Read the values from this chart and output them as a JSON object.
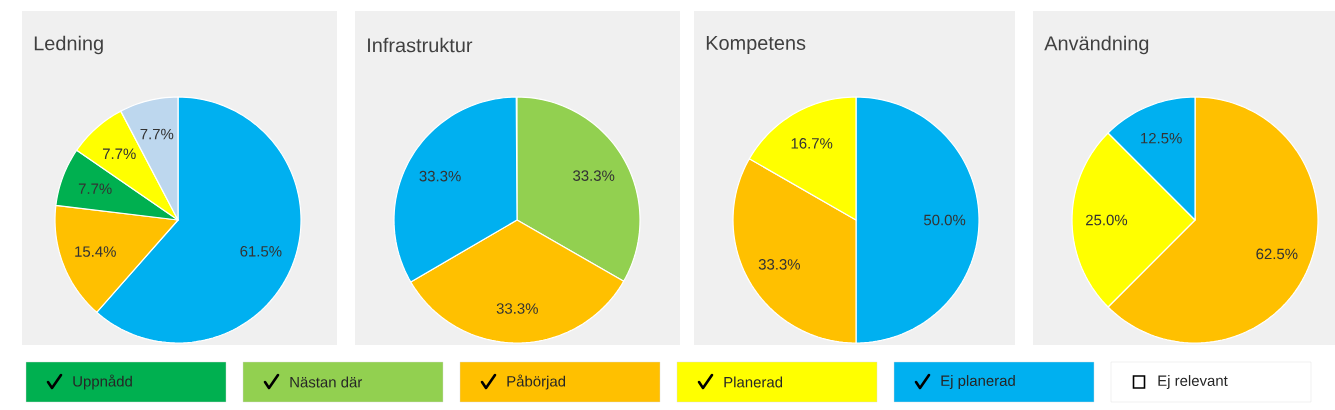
{
  "chart_data": [
    {
      "type": "pie",
      "title": "Ledning",
      "categories": [
        null,
        null,
        null,
        null,
        null
      ],
      "values": [
        61.5,
        15.4,
        7.7,
        7.7,
        7.7
      ],
      "colors": [
        "#00b0f0",
        "#ffc000",
        "#00b050",
        "#ffff00",
        "#bdd7ee"
      ],
      "value_labels": [
        "61.5%",
        "15.4%",
        "7.7%",
        "7.7%",
        "7.7%"
      ]
    },
    {
      "type": "pie",
      "title": "Infrastruktur",
      "categories": [
        null,
        null,
        null
      ],
      "values": [
        33.3,
        33.3,
        33.3
      ],
      "colors": [
        "#92d050",
        "#ffc000",
        "#00b0f0"
      ],
      "value_labels": [
        "33.3%",
        "33.3%",
        "33.3%"
      ]
    },
    {
      "type": "pie",
      "title": "Kompetens",
      "categories": [
        null,
        null,
        null
      ],
      "values": [
        50.0,
        33.3,
        16.7
      ],
      "colors": [
        "#00b0f0",
        "#ffc000",
        "#ffff00"
      ],
      "value_labels": [
        "50.0%",
        "33.3%",
        "16.7%"
      ]
    },
    {
      "type": "pie",
      "title": "Användning",
      "categories": [
        null,
        null,
        null
      ],
      "values": [
        62.5,
        25.0,
        12.5
      ],
      "colors": [
        "#ffc000",
        "#ffff00",
        "#00b0f0"
      ],
      "value_labels": [
        "62.5%",
        "25.0%",
        "12.5%"
      ]
    },
    {
      "type": "other",
      "categories": [
        "Uppnådd",
        "Nästan där",
        "Påbörjad",
        "Planerad",
        "Ej planerad",
        "Ej relevant"
      ],
      "colors": [
        "#00b050",
        "#92d050",
        "#ffc000",
        "#ffff00",
        "#00b0f0",
        "#ffffff"
      ]
    }
  ]
}
